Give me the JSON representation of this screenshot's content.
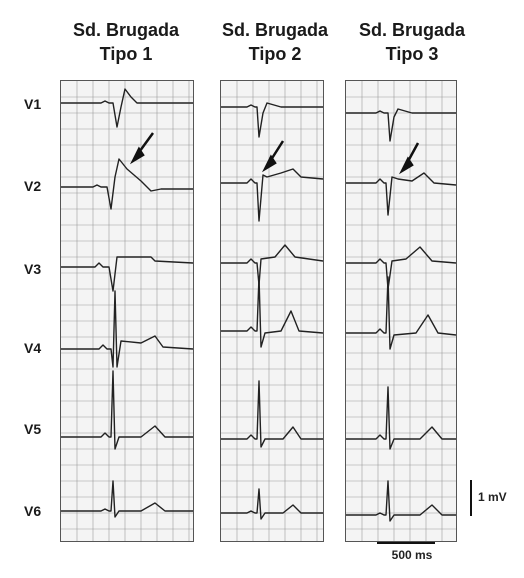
{
  "panels": [
    {
      "title_line1": "Sd. Brugada",
      "title_line2": "Tipo 1"
    },
    {
      "title_line1": "Sd. Brugada",
      "title_line2": "Tipo 2"
    },
    {
      "title_line1": "Sd. Brugada",
      "title_line2": "Tipo 3"
    }
  ],
  "leads": [
    "V1",
    "V2",
    "V3",
    "V4",
    "V5",
    "V6"
  ],
  "scale": {
    "amplitude_label": "1 mV",
    "time_label": "500 ms"
  },
  "colors": {
    "trace": "#222222",
    "grid": "#9a9a9a",
    "strip_bg": "#f4f4f4"
  }
}
